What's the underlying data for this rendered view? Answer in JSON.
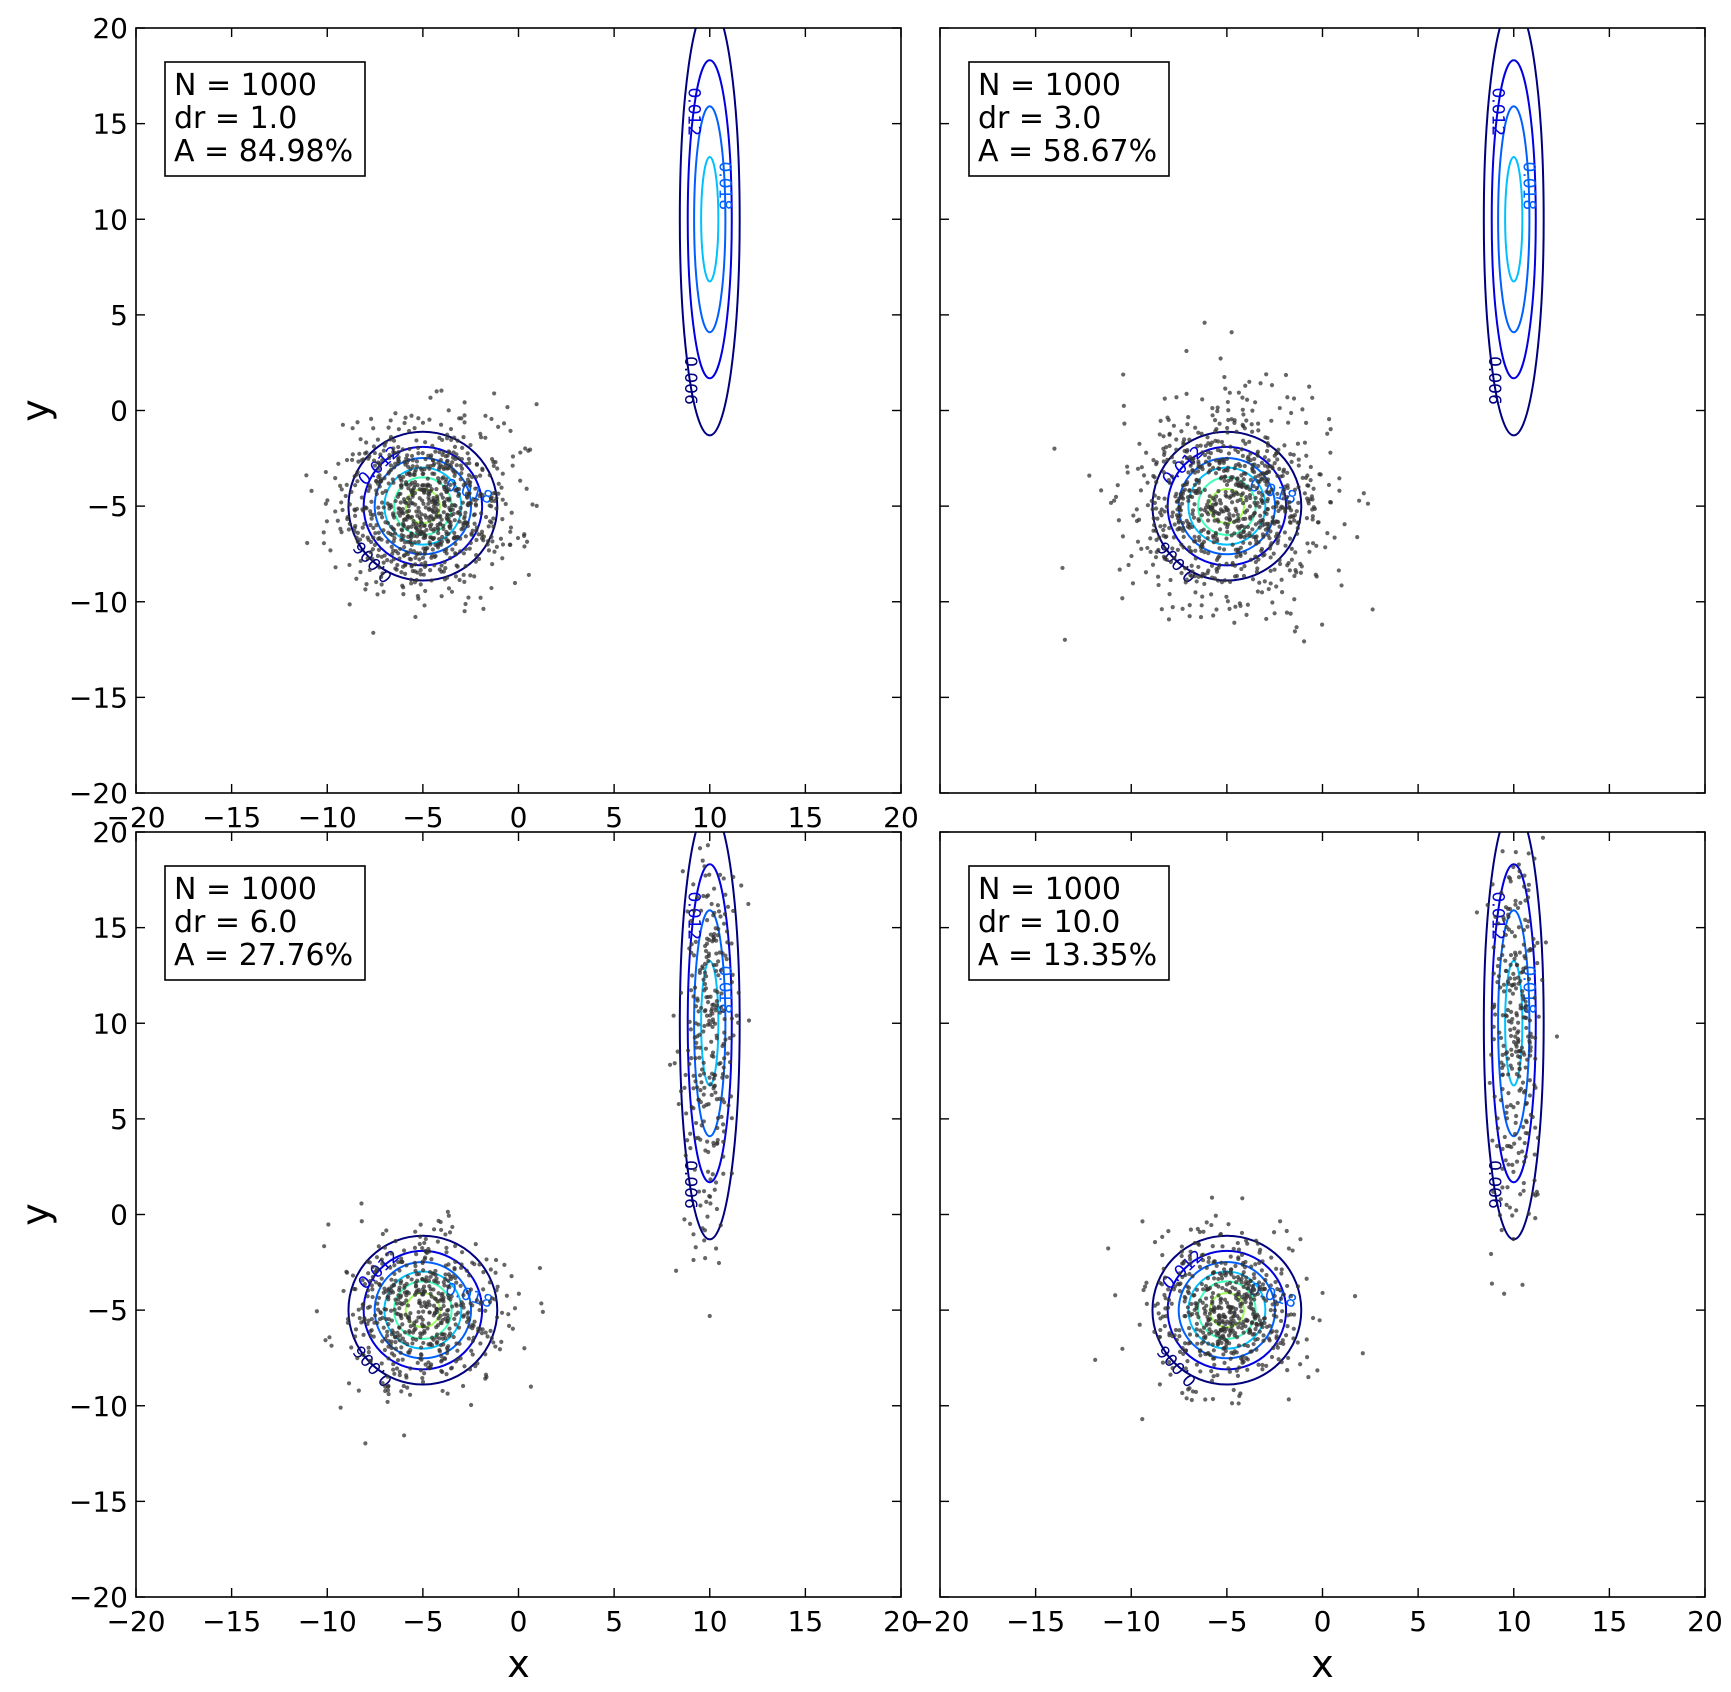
{
  "chart_data": [
    {
      "type": "scatter",
      "annotation": {
        "N": "N  = 1000",
        "dr": "dr = 1.0",
        "A": "A  = 84.98%"
      },
      "xlim": [
        -20,
        20
      ],
      "ylim": [
        -20,
        20
      ],
      "xticks": [
        "−20",
        "−15",
        "−10",
        "−5",
        "0",
        "5",
        "10",
        "15",
        "20"
      ],
      "yticks": [
        "20",
        "15",
        "10",
        "5",
        "0",
        "−5",
        "−10",
        "−15",
        "−20"
      ],
      "xlabel": "",
      "ylabel": "y",
      "gaussians": [
        {
          "center": [
            -5,
            -5
          ],
          "sx": 2,
          "sy": 2,
          "contour_labels": [
            "0.006",
            "0.012",
            "0.018"
          ]
        },
        {
          "center": [
            10,
            10
          ],
          "sx": 0.9,
          "sy": 6.5,
          "contour_labels": [
            "0.006",
            "0.012",
            "0.018",
            "0.054"
          ]
        }
      ],
      "samples": {
        "A": {
          "center": [
            -5,
            -5
          ],
          "sx": 2.2,
          "sy": 2.2,
          "count": 850
        },
        "B": {
          "center": [
            10,
            10
          ],
          "sx": 0.9,
          "sy": 6.5,
          "count": 0
        }
      },
      "contour_levels": [
        0.006,
        0.012,
        0.018,
        0.024,
        0.03,
        0.036,
        0.042,
        0.048,
        0.054
      ],
      "grid": false
    },
    {
      "type": "scatter",
      "annotation": {
        "N": "N  = 1000",
        "dr": "dr = 3.0",
        "A": "A  = 58.67%"
      },
      "xlim": [
        -20,
        20
      ],
      "ylim": [
        -20,
        20
      ],
      "xticks": [],
      "yticks": [],
      "xlabel": "",
      "ylabel": "",
      "gaussians": [
        {
          "center": [
            -5,
            -5
          ],
          "sx": 2,
          "sy": 2,
          "contour_labels": [
            "0.006",
            "0.012",
            "0.018"
          ]
        },
        {
          "center": [
            10,
            10
          ],
          "sx": 0.9,
          "sy": 6.5,
          "contour_labels": [
            "0.006",
            "0.012",
            "0.018",
            "0.054"
          ]
        }
      ],
      "samples": {
        "A": {
          "center": [
            -5,
            -5
          ],
          "sx": 2.6,
          "sy": 2.6,
          "count": 850
        },
        "B": {
          "center": [
            10,
            10
          ],
          "sx": 0.9,
          "sy": 6.5,
          "count": 0
        }
      },
      "contour_levels": [
        0.006,
        0.012,
        0.018,
        0.024,
        0.03,
        0.036,
        0.042,
        0.048,
        0.054
      ],
      "grid": false
    },
    {
      "type": "scatter",
      "annotation": {
        "N": "N  = 1000",
        "dr": "dr = 6.0",
        "A": "A  = 27.76%"
      },
      "xlim": [
        -20,
        20
      ],
      "ylim": [
        -20,
        20
      ],
      "xticks": [
        "−20",
        "−15",
        "−10",
        "−5",
        "0",
        "5",
        "10",
        "15",
        "20"
      ],
      "yticks": [
        "20",
        "15",
        "10",
        "5",
        "0",
        "−5",
        "−10",
        "−15",
        "−20"
      ],
      "xlabel": "x",
      "ylabel": "y",
      "gaussians": [
        {
          "center": [
            -5,
            -5
          ],
          "sx": 2,
          "sy": 2,
          "contour_labels": [
            "0.006",
            "0.012",
            "0.018"
          ]
        },
        {
          "center": [
            10,
            10
          ],
          "sx": 0.9,
          "sy": 6.5,
          "contour_labels": [
            "0.006",
            "0.012",
            "0.018",
            "0.054"
          ]
        }
      ],
      "samples": {
        "A": {
          "center": [
            -5,
            -5
          ],
          "sx": 2.0,
          "sy": 2.0,
          "count": 560
        },
        "B": {
          "center": [
            10,
            10
          ],
          "sx": 0.7,
          "sy": 5.5,
          "count": 280
        }
      },
      "contour_levels": [
        0.006,
        0.012,
        0.018,
        0.024,
        0.03,
        0.036,
        0.042,
        0.048,
        0.054
      ],
      "grid": false
    },
    {
      "type": "scatter",
      "annotation": {
        "N": "N  = 1000",
        "dr": "dr = 10.0",
        "A": "A  = 13.35%"
      },
      "xlim": [
        -20,
        20
      ],
      "ylim": [
        -20,
        20
      ],
      "xticks": [
        "−20",
        "−15",
        "−10",
        "−5",
        "0",
        "5",
        "10",
        "15",
        "20"
      ],
      "yticks": [],
      "xlabel": "x",
      "ylabel": "",
      "gaussians": [
        {
          "center": [
            -5,
            -5
          ],
          "sx": 2,
          "sy": 2,
          "contour_labels": [
            "0.006",
            "0.012",
            "0.018"
          ]
        },
        {
          "center": [
            10,
            10
          ],
          "sx": 0.9,
          "sy": 6.5,
          "contour_labels": [
            "0.006",
            "0.012",
            "0.018",
            "0.054"
          ]
        }
      ],
      "samples": {
        "A": {
          "center": [
            -5,
            -5
          ],
          "sx": 2.0,
          "sy": 2.0,
          "count": 560
        },
        "B": {
          "center": [
            10,
            10
          ],
          "sx": 0.7,
          "sy": 5.5,
          "count": 280
        }
      },
      "contour_levels": [
        0.006,
        0.012,
        0.018,
        0.024,
        0.03,
        0.036,
        0.042,
        0.048,
        0.054
      ],
      "grid": false
    }
  ],
  "colors": {
    "levels": [
      "#00007f",
      "#0000e0",
      "#0060ff",
      "#00c0ff",
      "#40ffb7",
      "#a0ff56",
      "#ffe600",
      "#ff8000",
      "#e00000"
    ],
    "points": "#333333"
  }
}
